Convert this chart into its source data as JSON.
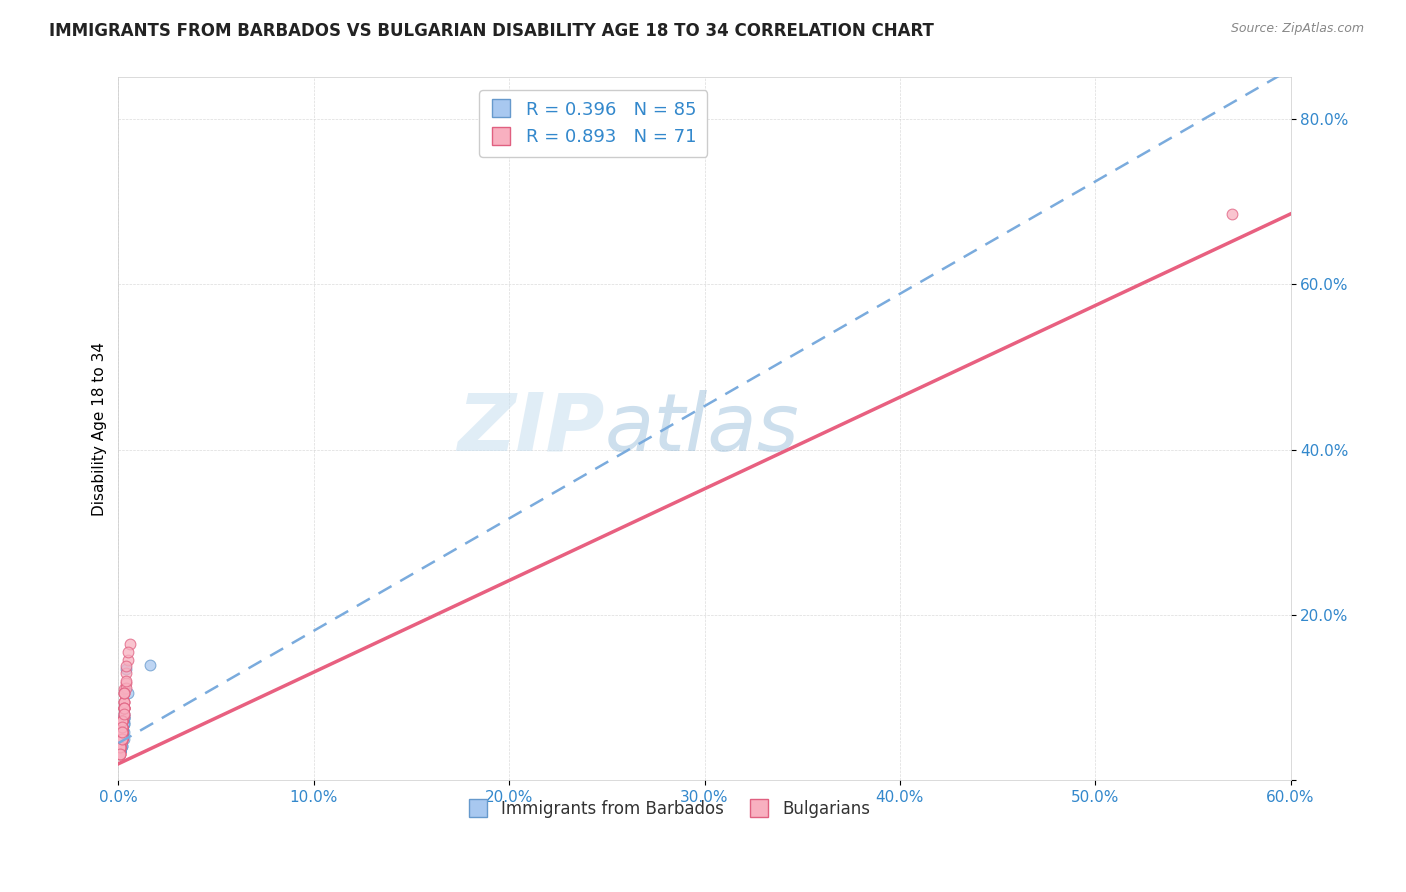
{
  "title": "IMMIGRANTS FROM BARBADOS VS BULGARIAN DISABILITY AGE 18 TO 34 CORRELATION CHART",
  "source": "Source: ZipAtlas.com",
  "ylabel": "Disability Age 18 to 34",
  "legend_label1": "Immigrants from Barbados",
  "legend_label2": "Bulgarians",
  "R1": 0.396,
  "N1": 85,
  "R2": 0.893,
  "N2": 71,
  "color1": "#a8c8f0",
  "color1_edge": "#6699cc",
  "color1_line": "#7aabdd",
  "color2": "#f8b0c0",
  "color2_edge": "#e06080",
  "color2_line": "#e86080",
  "xlim": [
    0.0,
    0.6
  ],
  "ylim": [
    0.0,
    0.85
  ],
  "xticks": [
    0.0,
    0.1,
    0.2,
    0.3,
    0.4,
    0.5,
    0.6
  ],
  "yticks": [
    0.0,
    0.2,
    0.4,
    0.6,
    0.8
  ],
  "xtick_labels": [
    "0.0%",
    "10.0%",
    "20.0%",
    "30.0%",
    "40.0%",
    "50.0%",
    "60.0%"
  ],
  "ytick_labels": [
    "",
    "20.0%",
    "40.0%",
    "60.0%",
    "80.0%"
  ],
  "watermark": "ZIPatlas",
  "title_fontsize": 12,
  "axis_label_fontsize": 11,
  "tick_fontsize": 11,
  "trendline1_x": [
    0.0,
    0.6
  ],
  "trendline1_y": [
    0.045,
    0.86
  ],
  "trendline2_x": [
    0.0,
    0.6
  ],
  "trendline2_y": [
    0.02,
    0.685
  ],
  "scatter1_x": [
    0.001,
    0.002,
    0.001,
    0.003,
    0.002,
    0.001,
    0.001,
    0.002,
    0.003,
    0.001,
    0.002,
    0.001,
    0.002,
    0.001,
    0.002,
    0.003,
    0.001,
    0.002,
    0.001,
    0.002,
    0.001,
    0.001,
    0.002,
    0.001,
    0.001,
    0.003,
    0.002,
    0.001,
    0.001,
    0.002,
    0.001,
    0.001,
    0.001,
    0.003,
    0.002,
    0.001,
    0.002,
    0.001,
    0.002,
    0.001,
    0.001,
    0.002,
    0.001,
    0.001,
    0.003,
    0.002,
    0.001,
    0.002,
    0.001,
    0.002,
    0.001,
    0.001,
    0.002,
    0.001,
    0.001,
    0.003,
    0.002,
    0.003,
    0.001,
    0.002,
    0.001,
    0.001,
    0.001,
    0.003,
    0.002,
    0.001,
    0.002,
    0.001,
    0.002,
    0.001,
    0.001,
    0.002,
    0.001,
    0.001,
    0.003,
    0.004,
    0.001,
    0.002,
    0.016,
    0.001,
    0.002,
    0.001,
    0.001,
    0.002,
    0.005
  ],
  "scatter1_y": [
    0.055,
    0.065,
    0.045,
    0.075,
    0.07,
    0.04,
    0.035,
    0.06,
    0.08,
    0.055,
    0.07,
    0.05,
    0.042,
    0.038,
    0.072,
    0.058,
    0.048,
    0.068,
    0.036,
    0.062,
    0.052,
    0.042,
    0.068,
    0.052,
    0.038,
    0.078,
    0.058,
    0.048,
    0.04,
    0.065,
    0.05,
    0.042,
    0.036,
    0.07,
    0.055,
    0.042,
    0.062,
    0.035,
    0.055,
    0.048,
    0.04,
    0.068,
    0.05,
    0.042,
    0.075,
    0.055,
    0.048,
    0.062,
    0.035,
    0.055,
    0.048,
    0.04,
    0.068,
    0.05,
    0.035,
    0.075,
    0.055,
    0.05,
    0.04,
    0.062,
    0.05,
    0.042,
    0.035,
    0.068,
    0.055,
    0.042,
    0.062,
    0.035,
    0.055,
    0.042,
    0.035,
    0.062,
    0.05,
    0.042,
    0.068,
    0.135,
    0.048,
    0.042,
    0.14,
    0.035,
    0.055,
    0.048,
    0.04,
    0.062,
    0.105
  ],
  "scatter2_x": [
    0.001,
    0.002,
    0.002,
    0.003,
    0.003,
    0.001,
    0.002,
    0.002,
    0.003,
    0.002,
    0.002,
    0.003,
    0.002,
    0.001,
    0.003,
    0.002,
    0.002,
    0.003,
    0.001,
    0.002,
    0.002,
    0.001,
    0.003,
    0.002,
    0.002,
    0.003,
    0.002,
    0.002,
    0.001,
    0.003,
    0.004,
    0.002,
    0.002,
    0.004,
    0.002,
    0.002,
    0.003,
    0.001,
    0.002,
    0.002,
    0.001,
    0.003,
    0.002,
    0.002,
    0.004,
    0.002,
    0.002,
    0.003,
    0.001,
    0.002,
    0.005,
    0.002,
    0.003,
    0.002,
    0.006,
    0.004,
    0.002,
    0.004,
    0.002,
    0.003,
    0.002,
    0.002,
    0.001,
    0.003,
    0.002,
    0.002,
    0.003,
    0.001,
    0.005,
    0.002,
    0.57
  ],
  "scatter2_y": [
    0.038,
    0.062,
    0.048,
    0.078,
    0.095,
    0.032,
    0.055,
    0.07,
    0.088,
    0.05,
    0.065,
    0.08,
    0.058,
    0.04,
    0.105,
    0.065,
    0.05,
    0.088,
    0.04,
    0.072,
    0.058,
    0.04,
    0.088,
    0.065,
    0.05,
    0.11,
    0.072,
    0.058,
    0.04,
    0.095,
    0.13,
    0.065,
    0.058,
    0.118,
    0.072,
    0.05,
    0.088,
    0.032,
    0.072,
    0.058,
    0.04,
    0.095,
    0.065,
    0.058,
    0.112,
    0.072,
    0.05,
    0.088,
    0.032,
    0.065,
    0.145,
    0.05,
    0.105,
    0.065,
    0.165,
    0.12,
    0.072,
    0.138,
    0.05,
    0.088,
    0.072,
    0.058,
    0.04,
    0.105,
    0.065,
    0.05,
    0.08,
    0.032,
    0.155,
    0.058,
    0.685
  ]
}
